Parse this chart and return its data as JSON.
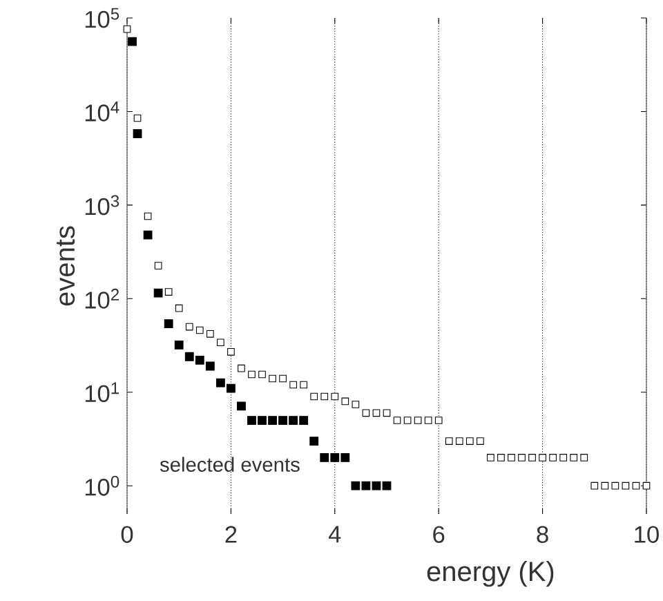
{
  "chart_data": {
    "type": "scatter",
    "xlabel": "energy (K)",
    "ylabel": "events",
    "xlim": [
      0,
      10
    ],
    "xticks": [
      0,
      2,
      4,
      6,
      8,
      10
    ],
    "ylim": [
      0.5,
      100000
    ],
    "yticks": [
      {
        "value": 1,
        "label": "10$^{0}$"
      },
      {
        "value": 10,
        "label": "10$^{1}$"
      },
      {
        "value": 100,
        "label": "10$^{2}$"
      },
      {
        "value": 1000,
        "label": "10$^{3}$"
      },
      {
        "value": 10000,
        "label": "10$^{4}$"
      },
      {
        "value": 100000,
        "label": "10$^{5}$"
      }
    ],
    "log": "y",
    "grid": "x",
    "marker": "square",
    "annotations": [
      "selected events"
    ],
    "series": [
      {
        "color": "#000000",
        "x": [
          0.0,
          0.2,
          0.4,
          0.6,
          0.8,
          1.0,
          1.2,
          1.4,
          1.6,
          1.8,
          2.0,
          2.2,
          2.4,
          2.6,
          2.8,
          3.0,
          3.2,
          3.4,
          3.6,
          3.8,
          4.0,
          4.2,
          4.4,
          4.6,
          4.8,
          5.0,
          5.2,
          5.4,
          5.6,
          5.8,
          6.0,
          6.2,
          6.4,
          6.6,
          6.8,
          7.0,
          7.2,
          7.4,
          7.6,
          7.8,
          8.0,
          8.2,
          8.4,
          8.6,
          8.8,
          9.0,
          9.2,
          9.4,
          9.6,
          9.8,
          10.0
        ],
        "values": [
          76000,
          8500,
          760,
          225,
          118,
          79,
          50,
          46,
          42,
          34,
          27,
          18,
          15.5,
          15.5,
          14,
          14,
          12,
          12,
          9,
          9,
          9,
          8,
          7.4,
          6,
          6,
          6,
          5,
          5,
          5,
          5,
          5,
          3,
          3,
          3,
          3,
          2,
          2,
          2,
          2,
          2,
          2,
          2,
          2,
          2,
          2,
          1,
          1,
          1,
          1,
          1,
          1
        ]
      },
      {
        "color": "#000000",
        "x": [
          0.1,
          0.2,
          0.4,
          0.6,
          0.8,
          1.0,
          1.2,
          1.4,
          1.6,
          1.8,
          2.0,
          2.2,
          2.4,
          2.6,
          2.8,
          3.0,
          3.2,
          3.4,
          3.6,
          3.8,
          4.0,
          4.2,
          4.4,
          4.6,
          4.8,
          5.0
        ],
        "values": [
          56000,
          5800,
          480,
          115,
          54,
          32,
          24,
          22,
          19,
          12.6,
          11,
          7.1,
          5,
          5,
          5,
          5,
          5,
          5,
          3,
          2,
          2,
          2,
          1,
          1,
          1,
          1
        ]
      }
    ]
  }
}
